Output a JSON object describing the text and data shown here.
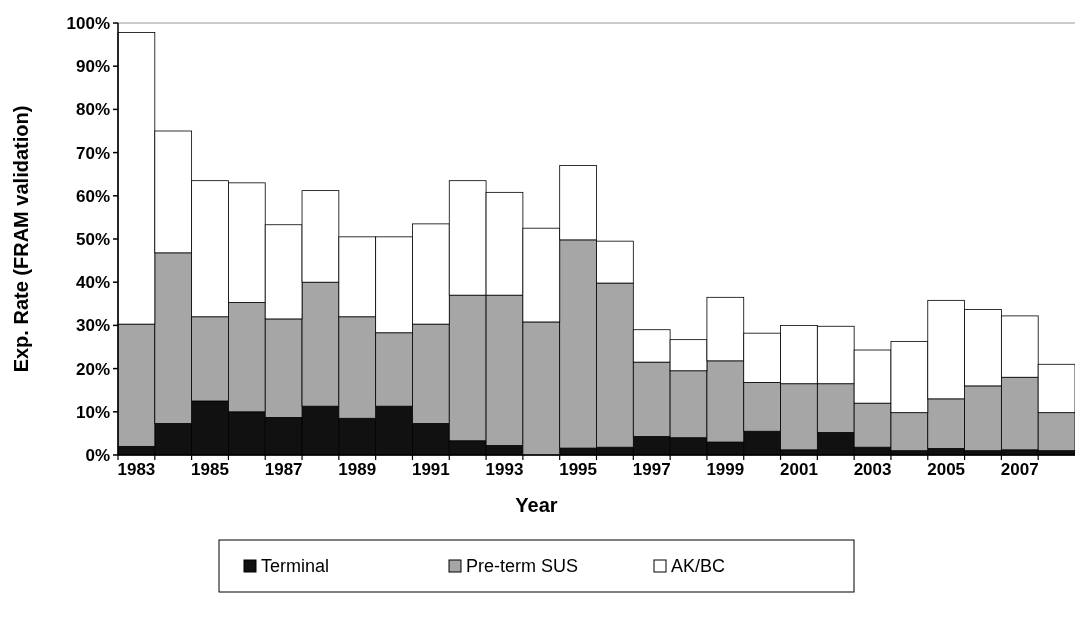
{
  "chart_data": {
    "type": "bar",
    "stacked": true,
    "xlabel": "Year",
    "ylabel": "Exp. Rate (FRAM validation)",
    "categories": [
      "1983",
      null,
      "1985",
      null,
      "1987",
      null,
      "1989",
      null,
      "1991",
      null,
      "1993",
      null,
      "1995",
      null,
      "1997",
      null,
      "1999",
      null,
      "2001",
      null,
      "2003",
      null,
      "2005",
      null,
      "2007",
      null
    ],
    "series": [
      {
        "name": "Terminal",
        "color": "#111111",
        "values": [
          2,
          7.3,
          12.5,
          10,
          8.7,
          11.3,
          8.5,
          11.3,
          7.3,
          3.3,
          2.2,
          0,
          1.6,
          1.8,
          4.3,
          4,
          3,
          5.5,
          1.2,
          5.2,
          1.8,
          1,
          1.5,
          1,
          1.2,
          1
        ]
      },
      {
        "name": "Pre-term SUS",
        "color": "#a6a6a6",
        "values": [
          28.3,
          39.5,
          19.5,
          25.3,
          22.8,
          28.7,
          23.5,
          17,
          23,
          33.7,
          34.8,
          30.8,
          48.2,
          38,
          17.2,
          15.5,
          18.8,
          11.3,
          15.3,
          11.3,
          10.2,
          8.8,
          11.5,
          15,
          16.8,
          8.8
        ]
      },
      {
        "name": "AK/BC",
        "color": "#ffffff",
        "values": [
          67.5,
          28.2,
          31.5,
          27.7,
          21.8,
          21.2,
          18.5,
          22.2,
          23.2,
          26.5,
          23.8,
          21.7,
          17.2,
          9.7,
          7.5,
          7.2,
          14.7,
          11.4,
          13.5,
          13.3,
          12.3,
          16.5,
          22.8,
          17.7,
          14.2,
          11.2
        ]
      }
    ],
    "ylim": [
      0,
      100
    ],
    "yticks": [
      {
        "value": 0,
        "label": "0%"
      },
      {
        "value": 10,
        "label": "10%"
      },
      {
        "value": 20,
        "label": "20%"
      },
      {
        "value": 30,
        "label": "30%"
      },
      {
        "value": 40,
        "label": "40%"
      },
      {
        "value": 50,
        "label": "50%"
      },
      {
        "value": 60,
        "label": "60%"
      },
      {
        "value": 70,
        "label": "70%"
      },
      {
        "value": 80,
        "label": "80%"
      },
      {
        "value": 90,
        "label": "90%"
      },
      {
        "value": 100,
        "label": "100%"
      }
    ],
    "grid": false,
    "legend": "bottom"
  }
}
